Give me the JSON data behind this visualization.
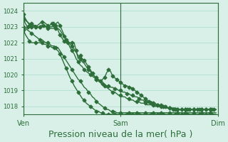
{
  "bg_color": "#d8f0e8",
  "grid_color": "#aaddcc",
  "line_color": "#2d6e3a",
  "marker_color": "#2d6e3a",
  "xlabel": "Pression niveau de la mer( hPa )",
  "xlabel_fontsize": 9,
  "ylim": [
    1017.5,
    1024.5
  ],
  "yticks": [
    1018,
    1019,
    1020,
    1021,
    1022,
    1023,
    1024
  ],
  "xtick_labels": [
    "Ven",
    "Sam",
    "Dim"
  ],
  "xtick_positions": [
    0,
    48,
    96
  ],
  "total_points": 96,
  "series": {
    "high": [
      1023.8,
      1023.5,
      1023.3,
      1023.1,
      1023.0,
      1023.0,
      1023.0,
      1023.1,
      1023.2,
      1023.3,
      1023.3,
      1023.2,
      1023.1,
      1023.0,
      1023.0,
      1023.1,
      1023.2,
      1023.3,
      1023.1,
      1022.8,
      1022.5,
      1022.2,
      1022.0,
      1021.7,
      1021.5,
      1021.3,
      1021.0,
      1020.8,
      1020.6,
      1020.5,
      1020.3,
      1020.2,
      1020.1,
      1020.0,
      1019.9,
      1019.8,
      1019.7,
      1019.6,
      1019.5,
      1019.4,
      1019.4,
      1019.3,
      1019.3,
      1019.2,
      1019.2,
      1019.1,
      1019.1,
      1019.0,
      1019.0,
      1018.9,
      1018.9,
      1018.8,
      1018.8,
      1018.7,
      1018.7,
      1018.6,
      1018.6,
      1018.5,
      1018.4,
      1018.4,
      1018.3,
      1018.3,
      1018.2,
      1018.2,
      1018.1,
      1018.1,
      1018.1,
      1018.0,
      1018.0,
      1018.0,
      1017.9,
      1017.9,
      1017.9,
      1017.9,
      1017.8,
      1017.8,
      1017.8,
      1017.8,
      1017.8,
      1017.8,
      1017.8,
      1017.8,
      1017.8,
      1017.8,
      1017.8,
      1017.8,
      1017.8,
      1017.8,
      1017.8,
      1017.8,
      1017.8,
      1017.8,
      1017.8,
      1017.8,
      1017.8,
      1017.8
    ],
    "low": [
      1022.8,
      1022.5,
      1022.3,
      1022.1,
      1022.0,
      1022.0,
      1022.0,
      1022.0,
      1022.0,
      1022.0,
      1021.9,
      1021.9,
      1021.8,
      1021.8,
      1021.7,
      1021.7,
      1021.6,
      1021.5,
      1021.3,
      1021.0,
      1020.7,
      1020.4,
      1020.1,
      1019.8,
      1019.6,
      1019.3,
      1019.1,
      1018.9,
      1018.7,
      1018.5,
      1018.4,
      1018.2,
      1018.1,
      1018.0,
      1017.9,
      1017.8,
      1017.7,
      1017.7,
      1017.6,
      1017.6,
      1017.5,
      1017.5,
      1017.5,
      1017.5,
      1017.5,
      1017.5,
      1017.5,
      1017.5,
      1017.5,
      1017.5,
      1017.5,
      1017.5,
      1017.5,
      1017.5,
      1017.5,
      1017.5,
      1017.5,
      1017.5,
      1017.5,
      1017.5,
      1017.5,
      1017.5,
      1017.5,
      1017.5,
      1017.5,
      1017.5,
      1017.5,
      1017.5,
      1017.5,
      1017.5,
      1017.5,
      1017.5,
      1017.5,
      1017.5,
      1017.5,
      1017.5,
      1017.5,
      1017.5,
      1017.5,
      1017.5,
      1017.5,
      1017.5,
      1017.5,
      1017.5,
      1017.5,
      1017.5,
      1017.5,
      1017.5,
      1017.5,
      1017.5,
      1017.5,
      1017.5,
      1017.5,
      1017.5,
      1017.5,
      1017.5
    ],
    "actual": [
      1023.5,
      1023.2,
      1023.0,
      1023.0,
      1023.0,
      1023.1,
      1023.0,
      1023.0,
      1023.0,
      1023.1,
      1023.1,
      1023.0,
      1023.0,
      1023.1,
      1023.2,
      1023.3,
      1023.1,
      1022.8,
      1022.5,
      1022.3,
      1022.1,
      1022.0,
      1022.0,
      1022.0,
      1022.0,
      1022.0,
      1021.5,
      1021.0,
      1021.2,
      1021.0,
      1020.9,
      1020.7,
      1020.5,
      1020.3,
      1020.1,
      1019.9,
      1019.8,
      1019.7,
      1019.6,
      1019.7,
      1019.8,
      1020.1,
      1020.3,
      1020.2,
      1019.9,
      1019.8,
      1019.7,
      1019.6,
      1019.5,
      1019.4,
      1019.3,
      1019.3,
      1019.2,
      1019.2,
      1019.1,
      1019.0,
      1018.9,
      1018.8,
      1018.7,
      1018.6,
      1018.5,
      1018.4,
      1018.3,
      1018.3,
      1018.2,
      1018.2,
      1018.1,
      1018.1,
      1018.1,
      1018.0,
      1018.0,
      1017.9,
      1017.9,
      1017.9,
      1017.8,
      1017.8,
      1017.8,
      1017.8,
      1017.8,
      1017.8,
      1017.8,
      1017.8,
      1017.8,
      1017.8,
      1017.8,
      1017.8,
      1017.8,
      1017.8,
      1017.8,
      1017.8,
      1017.8,
      1017.8,
      1017.8,
      1017.8,
      1017.8,
      1017.8
    ],
    "forecast_upper": [
      1023.5,
      1023.4,
      1023.3,
      1023.2,
      1023.2,
      1023.1,
      1023.1,
      1023.0,
      1023.0,
      1023.0,
      1023.0,
      1023.0,
      1022.9,
      1022.9,
      1022.9,
      1022.9,
      1022.9,
      1022.9,
      1022.8,
      1022.6,
      1022.4,
      1022.2,
      1022.1,
      1021.9,
      1021.8,
      1021.6,
      1021.4,
      1021.2,
      1021.0,
      1020.8,
      1020.7,
      1020.5,
      1020.3,
      1020.2,
      1020.0,
      1019.9,
      1019.7,
      1019.6,
      1019.5,
      1019.4,
      1019.3,
      1019.2,
      1019.1,
      1019.0,
      1018.9,
      1018.9,
      1018.8,
      1018.7,
      1018.7,
      1018.6,
      1018.6,
      1018.5,
      1018.5,
      1018.4,
      1018.4,
      1018.3,
      1018.3,
      1018.3,
      1018.2,
      1018.2,
      1018.2,
      1018.1,
      1018.1,
      1018.1,
      1018.1,
      1018.0,
      1018.0,
      1018.0,
      1018.0,
      1017.9,
      1017.9,
      1017.9,
      1017.9,
      1017.9,
      1017.9,
      1017.9,
      1017.8,
      1017.8,
      1017.8,
      1017.8,
      1017.8,
      1017.8,
      1017.8,
      1017.8,
      1017.8,
      1017.8,
      1017.8,
      1017.8,
      1017.8,
      1017.8,
      1017.8,
      1017.8,
      1017.8,
      1017.8,
      1017.8,
      1017.8
    ],
    "forecast_lower": [
      1023.0,
      1022.9,
      1022.8,
      1022.7,
      1022.6,
      1022.5,
      1022.4,
      1022.3,
      1022.2,
      1022.2,
      1022.1,
      1022.0,
      1022.0,
      1021.9,
      1021.8,
      1021.8,
      1021.7,
      1021.7,
      1021.5,
      1021.3,
      1021.1,
      1020.9,
      1020.7,
      1020.5,
      1020.3,
      1020.1,
      1019.9,
      1019.7,
      1019.6,
      1019.4,
      1019.2,
      1019.1,
      1018.9,
      1018.8,
      1018.6,
      1018.5,
      1018.3,
      1018.2,
      1018.1,
      1018.0,
      1017.9,
      1017.8,
      1017.8,
      1017.7,
      1017.7,
      1017.7,
      1017.6,
      1017.6,
      1017.6,
      1017.6,
      1017.6,
      1017.6,
      1017.6,
      1017.6,
      1017.6,
      1017.6,
      1017.6,
      1017.6,
      1017.6,
      1017.6,
      1017.6,
      1017.6,
      1017.6,
      1017.6,
      1017.6,
      1017.6,
      1017.6,
      1017.6,
      1017.6,
      1017.6,
      1017.6,
      1017.6,
      1017.6,
      1017.6,
      1017.6,
      1017.6,
      1017.6,
      1017.6,
      1017.6,
      1017.6,
      1017.6,
      1017.6,
      1017.6,
      1017.6,
      1017.6,
      1017.6,
      1017.6,
      1017.6,
      1017.6,
      1017.6,
      1017.6,
      1017.6,
      1017.6,
      1017.6,
      1017.6,
      1017.6
    ]
  }
}
